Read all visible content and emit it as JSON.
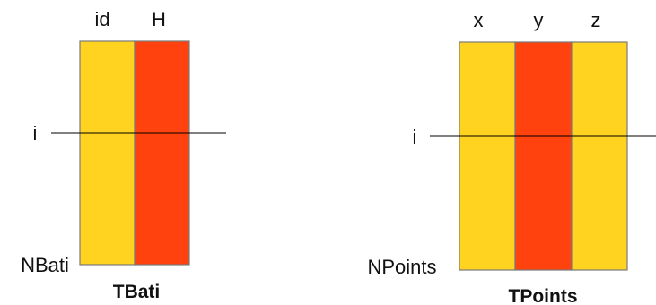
{
  "colors": {
    "yellow": "#FFD320",
    "red": "#FF420E"
  },
  "tables": [
    {
      "title": "TBati",
      "row_label": "i",
      "count_label": "NBati",
      "columns": [
        {
          "name": "id",
          "color": "#FFD320"
        },
        {
          "name": "H",
          "color": "#FF420E"
        }
      ]
    },
    {
      "title": "TPoints",
      "row_label": "i",
      "count_label": "NPoints",
      "columns": [
        {
          "name": "x",
          "color": "#FFD320"
        },
        {
          "name": "y",
          "color": "#FF420E"
        },
        {
          "name": "z",
          "color": "#FFD320"
        }
      ]
    }
  ]
}
